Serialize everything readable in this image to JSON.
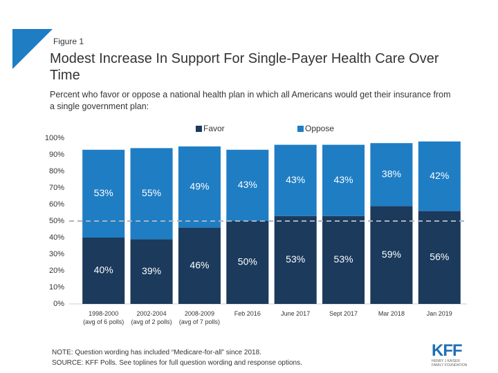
{
  "figure_label": "Figure 1",
  "chart_data": {
    "type": "stacked_bar",
    "title": "Modest Increase In Support For Single-Payer Health Care Over Time",
    "subtitle": "Percent who favor or oppose a national health plan in which all Americans would get their insurance from a single government plan:",
    "categories": [
      "1998-2000\n(avg of 6 polls)",
      "2002-2004\n(avg of 2 polls)",
      "2008-2009\n(avg of 7 polls)",
      "Feb 2016",
      "June 2017",
      "Sept 2017",
      "Mar 2018",
      "Jan 2019"
    ],
    "series": [
      {
        "name": "Favor",
        "color": "#1b3a5c",
        "values": [
          40,
          39,
          46,
          50,
          53,
          53,
          59,
          56
        ],
        "value_labels": [
          "40%",
          "39%",
          "46%",
          "50%",
          "53%",
          "53%",
          "59%",
          "56%"
        ]
      },
      {
        "name": "Oppose",
        "color": "#1f7dc4",
        "values": [
          53,
          55,
          49,
          43,
          43,
          43,
          38,
          42
        ],
        "value_labels": [
          "53%",
          "55%",
          "49%",
          "43%",
          "43%",
          "43%",
          "38%",
          "42%"
        ]
      }
    ],
    "ylim": [
      0,
      100
    ],
    "yticks": [
      {
        "value": 0,
        "label": "0%"
      },
      {
        "value": 10,
        "label": "10%"
      },
      {
        "value": 20,
        "label": "20%"
      },
      {
        "value": 30,
        "label": "30%"
      },
      {
        "value": 40,
        "label": "40%"
      },
      {
        "value": 50,
        "label": "50%"
      },
      {
        "value": 60,
        "label": "60%"
      },
      {
        "value": 70,
        "label": "70%"
      },
      {
        "value": 80,
        "label": "80%"
      },
      {
        "value": 90,
        "label": "90%"
      },
      {
        "value": 100,
        "label": "100%"
      }
    ],
    "reference_line": 50,
    "legend": "top",
    "grid": false
  },
  "notes": [
    "NOTE: Question wording has included “Medicare-for-all” since 2018.",
    "SOURCE: KFF Polls. See toplines for full question wording and response options."
  ],
  "logo": {
    "name": "KFF",
    "subtitle": "HENRY J KAISER FAMILY FOUNDATION"
  }
}
